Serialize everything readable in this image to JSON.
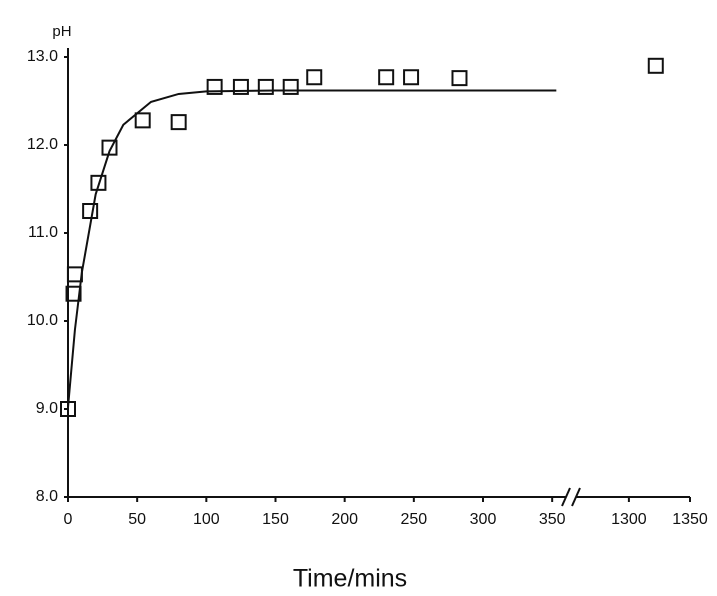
{
  "chart_data": {
    "type": "scatter",
    "y_label": "pH",
    "x_label": "Time/mins",
    "ylim": [
      8,
      13
    ],
    "yticks": [
      {
        "value": 8,
        "label": "8.0"
      },
      {
        "value": 9,
        "label": "9.0"
      },
      {
        "value": 10,
        "label": "10.0"
      },
      {
        "value": 11,
        "label": "11.0"
      },
      {
        "value": 12,
        "label": "12.0"
      },
      {
        "value": 13,
        "label": "13.0"
      }
    ],
    "x_segments": [
      {
        "xlim": [
          0,
          360
        ],
        "xticks": [
          0,
          50,
          100,
          150,
          200,
          250,
          300,
          350
        ]
      },
      {
        "xlim": [
          1260,
          1350
        ],
        "xticks": [
          1300,
          1350
        ]
      }
    ],
    "series": [
      {
        "type": "scatter",
        "color": "#111111",
        "x": [
          0,
          4,
          5,
          16,
          22,
          30,
          54,
          80,
          106,
          125,
          143,
          161,
          178,
          230,
          248,
          283,
          1322
        ],
        "values": [
          9.0,
          10.31,
          10.53,
          11.25,
          11.57,
          11.97,
          12.28,
          12.26,
          12.66,
          12.66,
          12.66,
          12.66,
          12.77,
          12.77,
          12.77,
          12.76,
          12.9
        ]
      },
      {
        "type": "line",
        "color": "#111111",
        "x": [
          0,
          5,
          10,
          20,
          30,
          40,
          60,
          80,
          100,
          150,
          353
        ],
        "values": [
          9.02,
          9.9,
          10.55,
          11.44,
          11.93,
          12.23,
          12.49,
          12.58,
          12.61,
          12.62,
          12.62
        ]
      }
    ]
  }
}
